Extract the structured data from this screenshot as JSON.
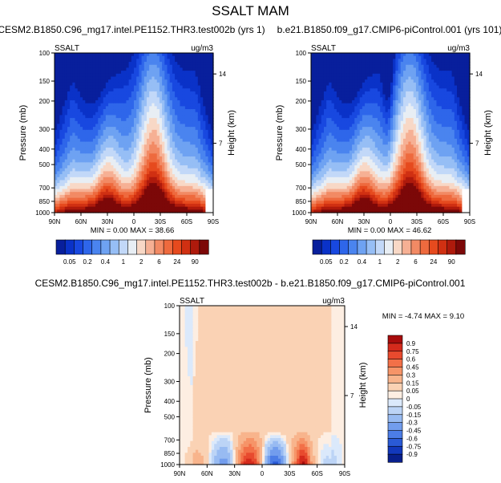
{
  "title": "SSALT MAM",
  "chart_data": [
    {
      "type": "heatmap",
      "title": "CESM2.B1850.C96_mg17.intel.PE1152.THR3.test002b (yrs 1)",
      "left_label": "SSALT",
      "unit": "ug/m3",
      "ylabel": "Pressure (mb)",
      "y2label": "Height (km)",
      "x_ticks": [
        "90N",
        "60N",
        "30N",
        "0",
        "30S",
        "60S",
        "90S"
      ],
      "y_ticks": [
        "100",
        "150",
        "200",
        "300",
        "400",
        "500",
        "700",
        "850",
        "1000"
      ],
      "y2_ticks": [
        "14",
        "7"
      ],
      "stats": "MIN =   0.00   MAX =  38.66",
      "colorbar": {
        "orientation": "horizontal",
        "labels": [
          "0.05",
          "0.2",
          "0.4",
          "1",
          "2",
          "6",
          "24",
          "90"
        ],
        "colors": [
          "#081f9c",
          "#0a32c8",
          "#1848e0",
          "#2e66ea",
          "#4a84ef",
          "#6ea2f2",
          "#96bef5",
          "#c2d8f8",
          "#e8eef4",
          "#f8d8c6",
          "#f6b094",
          "#f28a64",
          "#ee6a3e",
          "#e64a1e",
          "#d03012",
          "#ae1a0c",
          "#7c0808"
        ]
      }
    },
    {
      "type": "heatmap",
      "title": "b.e21.B1850.f09_g17.CMIP6-piControl.001 (yrs 101)",
      "left_label": "SSALT",
      "unit": "ug/m3",
      "ylabel": "Pressure (mb)",
      "y2label": "Height (km)",
      "x_ticks": [
        "90N",
        "60N",
        "30N",
        "0",
        "30S",
        "60S",
        "90S"
      ],
      "y_ticks": [
        "100",
        "150",
        "200",
        "300",
        "400",
        "500",
        "700",
        "850",
        "1000"
      ],
      "y2_ticks": [
        "14",
        "7"
      ],
      "stats": "MIN =   0.00   MAX =  46.62",
      "colorbar": {
        "orientation": "horizontal",
        "labels": [
          "0.05",
          "0.2",
          "0.4",
          "1",
          "2",
          "6",
          "24",
          "90"
        ],
        "colors": [
          "#081f9c",
          "#0a32c8",
          "#1848e0",
          "#2e66ea",
          "#4a84ef",
          "#6ea2f2",
          "#96bef5",
          "#c2d8f8",
          "#e8eef4",
          "#f8d8c6",
          "#f6b094",
          "#f28a64",
          "#ee6a3e",
          "#e64a1e",
          "#d03012",
          "#ae1a0c",
          "#7c0808"
        ]
      }
    },
    {
      "type": "heatmap",
      "title": "CESM2.B1850.C96_mg17.intel.PE1152.THR3.test002b - b.e21.B1850.f09_g17.CMIP6-piControl.001",
      "left_label": "SSALT",
      "unit": "ug/m3",
      "ylabel": "Pressure (mb)",
      "y2label": "Height (km)",
      "x_ticks": [
        "90N",
        "60N",
        "30N",
        "0",
        "30S",
        "60S",
        "90S"
      ],
      "y_ticks": [
        "100",
        "150",
        "200",
        "300",
        "400",
        "500",
        "700",
        "850",
        "1000"
      ],
      "y2_ticks": [
        "14",
        "7"
      ],
      "stats": "MIN =  -4.74   MAX =   9.10",
      "colorbar": {
        "orientation": "vertical",
        "labels": [
          "0.9",
          "0.75",
          "0.6",
          "0.45",
          "0.3",
          "0.15",
          "0.05",
          "0",
          "-0.05",
          "-0.15",
          "-0.3",
          "-0.45",
          "-0.6",
          "-0.75",
          "-0.9"
        ],
        "colors": [
          "#a80c0c",
          "#d42a1c",
          "#e84a2e",
          "#f27048",
          "#f69468",
          "#f8b48c",
          "#fad2b4",
          "#fdeee2",
          "#dbe9fb",
          "#bcd4f6",
          "#98bbf2",
          "#729ded",
          "#4c7de6",
          "#2a5ad6",
          "#1238bc",
          "#081f8c"
        ]
      }
    }
  ]
}
